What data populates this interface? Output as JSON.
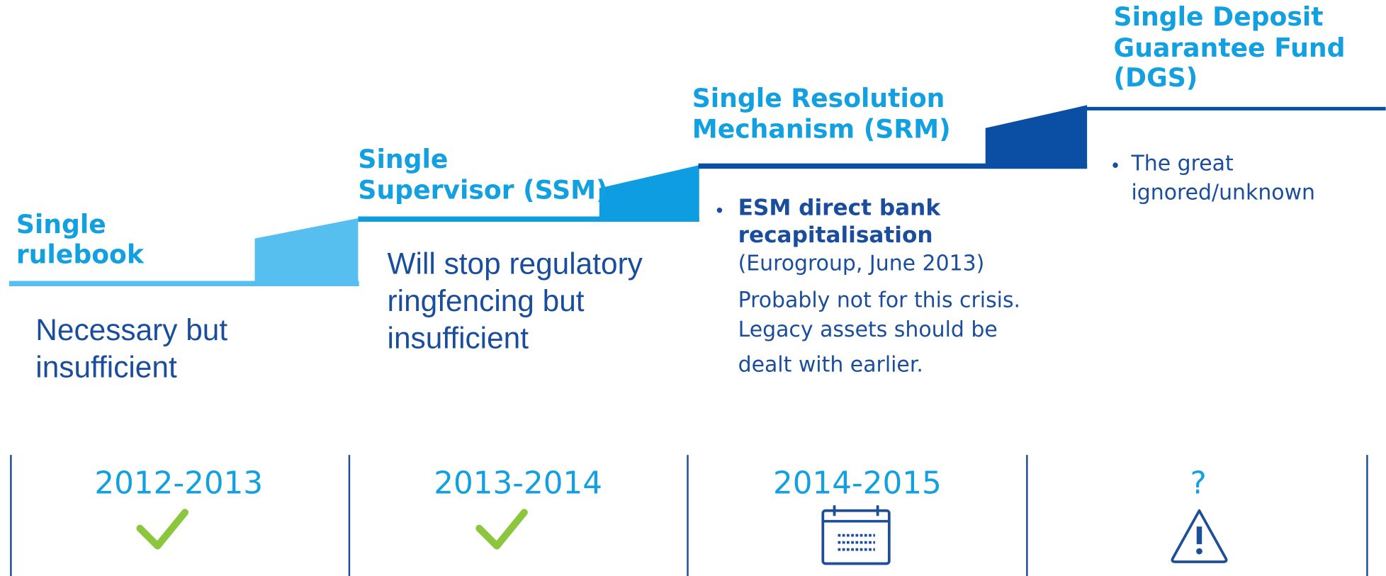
{
  "steps": [
    {
      "title": [
        "Single",
        "rulebook"
      ],
      "note": [
        "Necessary but",
        "insufficient"
      ],
      "period": "2012-2013"
    },
    {
      "title": [
        "Single",
        "Supervisor (SSM)"
      ],
      "note": [
        "Will stop regulatory",
        "ringfencing but",
        "insufficient"
      ],
      "period": "2013-2014"
    },
    {
      "title": [
        "Single Resolution",
        "Mechanism (SRM)"
      ],
      "bullet": [
        "ESM direct bank",
        "recapitalisation"
      ],
      "source": "(Eurogroup, June 2013)",
      "note": [
        "Probably not for this crisis.",
        "Legacy assets should be",
        "dealt with earlier."
      ],
      "period": "2014-2015"
    },
    {
      "title": [
        "Single Deposit",
        "Guarantee Fund",
        "(DGS)"
      ],
      "bullet": [
        "The great",
        "ignored/unknown"
      ],
      "period": "?"
    }
  ]
}
